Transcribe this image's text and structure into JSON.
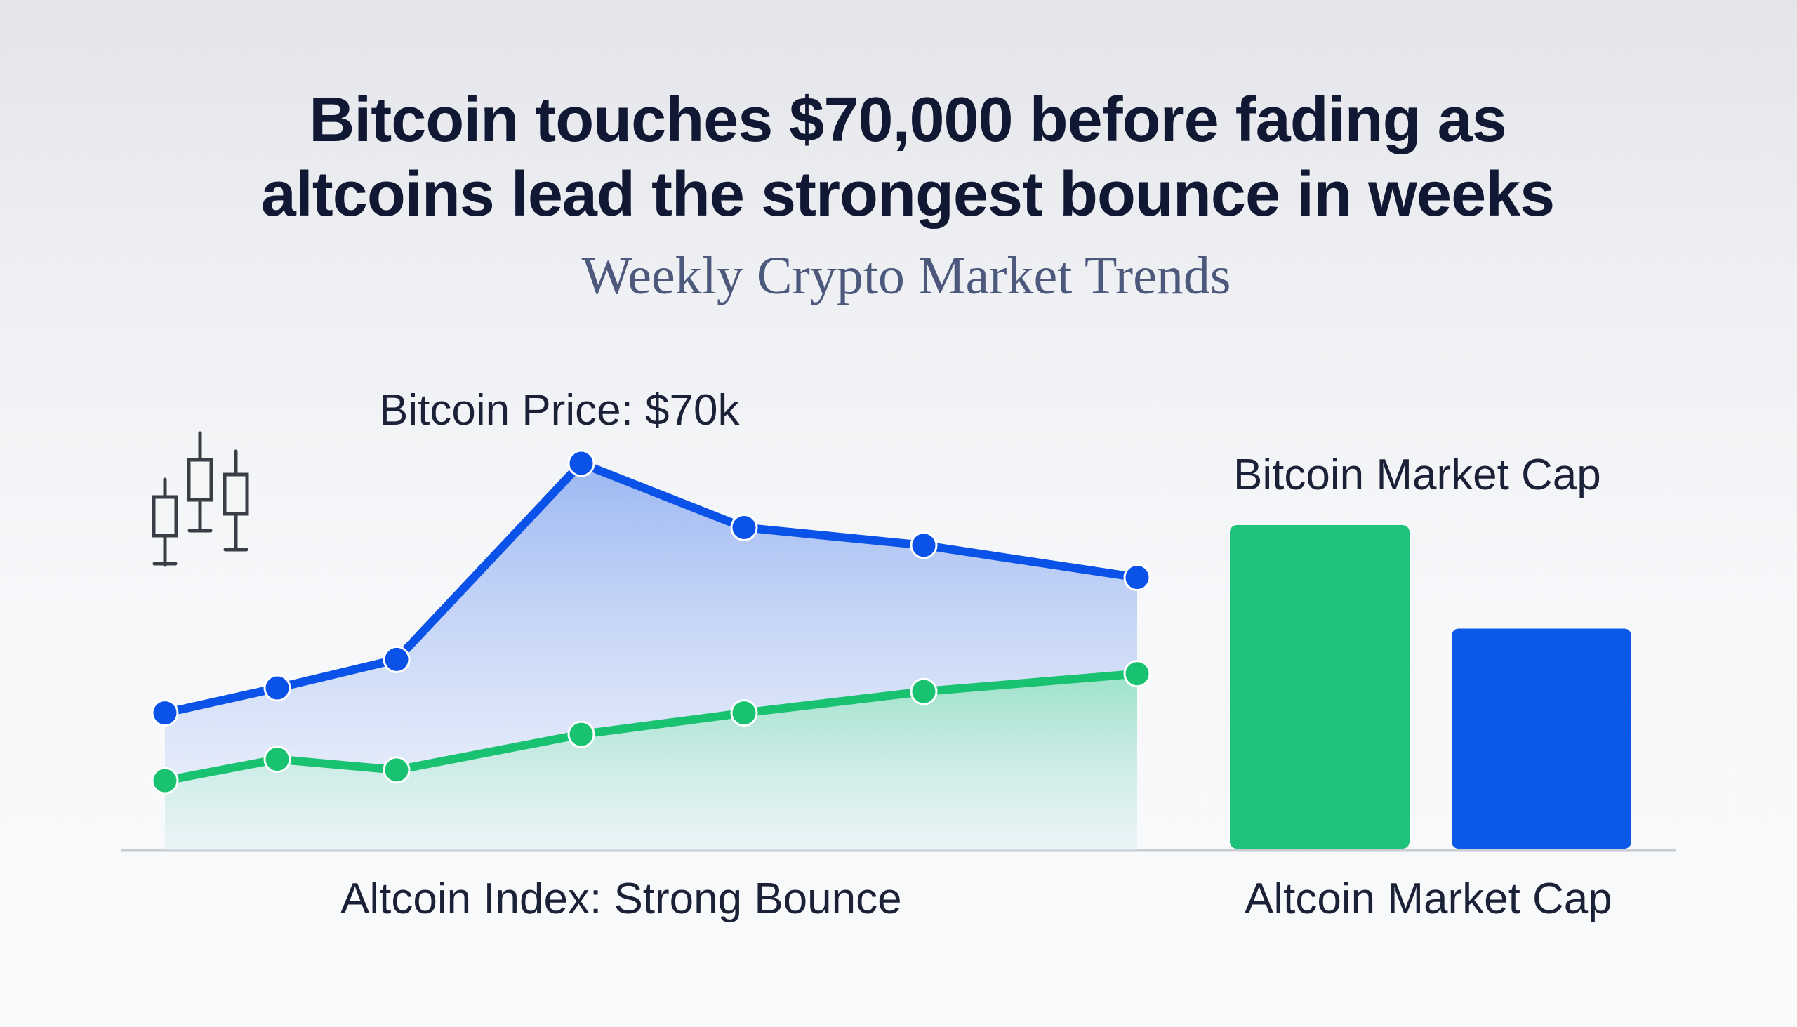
{
  "title": {
    "line1": "Bitcoin touches $70,000 before fading as",
    "line2": "altcoins lead the strongest bounce in weeks"
  },
  "subtitle": "Weekly Crypto Market Trends",
  "icon": "candlestick-icon",
  "colors": {
    "bitcoin": "#0a52e8",
    "altcoin": "#19c271",
    "axis": "#c9ccd3",
    "text": "#1b2238"
  },
  "chart_data": [
    {
      "type": "area",
      "annotation_top": "Bitcoin Price: $70k",
      "annotation_bottom": "Altcoin Index: Strong Bounce",
      "xlabel": "",
      "ylabel": "",
      "ylim": [
        0,
        100
      ],
      "grid": false,
      "x": [
        1,
        2,
        3,
        4,
        5,
        6,
        7
      ],
      "series": [
        {
          "name": "Bitcoin Price",
          "color": "#0a52e8",
          "values": [
            30,
            37,
            45,
            100,
            82,
            77,
            68
          ]
        },
        {
          "name": "Altcoin Index",
          "color": "#19c271",
          "values": [
            11,
            17,
            14,
            24,
            30,
            36,
            41
          ]
        }
      ]
    },
    {
      "type": "bar",
      "labels": [
        "Bitcoin Market Cap",
        "Altcoin Market Cap"
      ],
      "categories": [
        "Bitcoin Market Cap",
        "Altcoin Market Cap"
      ],
      "colors": [
        "#1fc27a",
        "#0b59e6"
      ],
      "values": [
        100,
        68
      ],
      "ylim": [
        0,
        100
      ]
    }
  ]
}
